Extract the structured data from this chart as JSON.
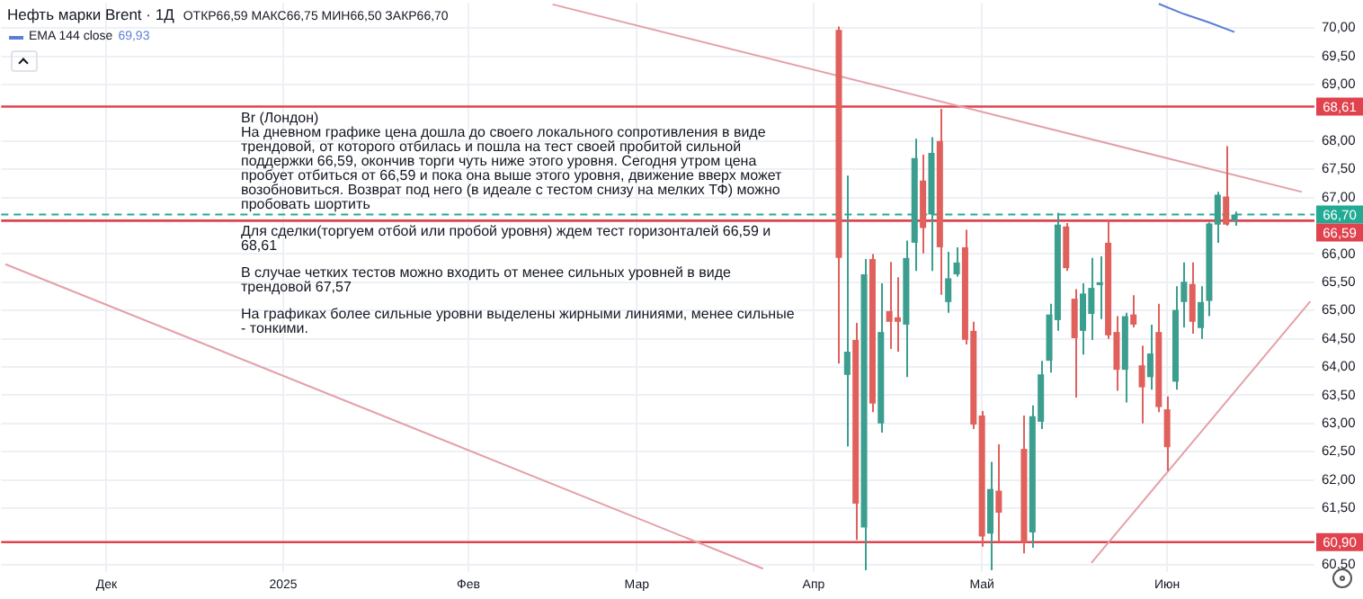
{
  "chart_data": {
    "type": "candlestick",
    "title": "Нефть марки Brent · 1Д",
    "subtitle": "ОТКР66,59 МАКС66,75 МИН66,50 ЗАКР66,70",
    "categories": [
      null,
      null,
      null,
      null,
      null,
      null,
      null,
      null,
      null,
      null,
      null,
      null,
      "Дек",
      null,
      null,
      null,
      null,
      null,
      null,
      null,
      null,
      null,
      null,
      null,
      null,
      null,
      null,
      null,
      null,
      null,
      null,
      null,
      null,
      "2025",
      null,
      null,
      null,
      null,
      null,
      null,
      null,
      null,
      null,
      null,
      null,
      null,
      null,
      null,
      null,
      null,
      null,
      null,
      null,
      null,
      null,
      "Фев",
      null,
      null,
      null,
      null,
      null,
      null,
      null,
      null,
      null,
      null,
      null,
      null,
      null,
      null,
      null,
      null,
      null,
      null,
      null,
      "Мар",
      null,
      null,
      null,
      null,
      null,
      null,
      null,
      null,
      null,
      null,
      null,
      null,
      null,
      null,
      null,
      null,
      null,
      null,
      null,
      null,
      "Апр",
      null,
      null,
      null,
      null,
      null,
      null,
      null,
      null,
      null,
      null,
      null,
      null,
      null,
      null,
      null,
      null,
      null,
      null,
      null,
      "Май",
      null,
      null,
      null,
      null,
      null,
      null,
      null,
      null,
      null,
      null,
      null,
      null,
      null,
      null,
      null,
      null,
      null,
      null,
      null,
      null,
      null,
      "Июн",
      null,
      null,
      null,
      null,
      null,
      null,
      null,
      null,
      null,
      null,
      null,
      null,
      null,
      null,
      null,
      null,
      null
    ],
    "ohlc": [
      null,
      null,
      null,
      null,
      null,
      null,
      null,
      null,
      null,
      null,
      null,
      null,
      null,
      null,
      null,
      null,
      null,
      null,
      null,
      null,
      null,
      null,
      null,
      null,
      null,
      null,
      null,
      null,
      null,
      null,
      null,
      null,
      null,
      null,
      null,
      null,
      null,
      null,
      null,
      null,
      null,
      null,
      null,
      null,
      null,
      null,
      null,
      null,
      null,
      null,
      null,
      null,
      null,
      null,
      null,
      null,
      null,
      null,
      null,
      null,
      null,
      null,
      null,
      null,
      null,
      null,
      null,
      null,
      null,
      null,
      null,
      null,
      null,
      null,
      null,
      null,
      null,
      null,
      null,
      null,
      null,
      null,
      null,
      null,
      null,
      null,
      null,
      null,
      null,
      null,
      null,
      null,
      null,
      null,
      null,
      null,
      null,
      null,
      null,
      [
        69.97,
        70.03,
        64.06,
        65.93
      ],
      [
        63.86,
        67.39,
        62.59,
        64.27
      ],
      [
        64.48,
        64.78,
        60.94,
        61.58
      ],
      [
        61.16,
        65.91,
        60.4,
        65.64
      ],
      [
        65.91,
        66.0,
        63.2,
        63.35
      ],
      [
        63.0,
        65.48,
        62.84,
        64.62
      ],
      [
        64.99,
        65.86,
        64.32,
        64.8
      ],
      [
        64.88,
        65.59,
        64.27,
        64.8
      ],
      [
        64.75,
        66.24,
        63.82,
        65.93
      ],
      [
        66.2,
        68.04,
        65.7,
        67.7
      ],
      [
        67.3,
        67.76,
        66.01,
        66.46
      ],
      [
        66.7,
        68.07,
        65.7,
        67.79
      ],
      [
        68.0,
        68.57,
        65.28,
        66.12
      ],
      [
        65.15,
        66.04,
        64.96,
        65.57
      ],
      [
        65.64,
        66.12,
        65.6,
        65.85
      ],
      [
        66.12,
        66.43,
        64.4,
        64.48
      ],
      [
        64.64,
        64.8,
        62.9,
        62.98
      ],
      [
        63.14,
        63.22,
        60.82,
        61.0
      ],
      [
        61.05,
        62.32,
        60.4,
        61.84
      ],
      [
        61.81,
        62.63,
        60.9,
        61.42
      ],
      null,
      null,
      [
        62.55,
        63.14,
        60.7,
        60.89
      ],
      [
        61.07,
        63.32,
        60.8,
        63.13
      ],
      [
        63.03,
        64.11,
        62.9,
        63.87
      ],
      [
        64.11,
        65.12,
        63.9,
        64.93
      ],
      [
        64.83,
        66.73,
        64.64,
        66.52
      ],
      [
        66.49,
        66.55,
        65.7,
        65.75
      ],
      [
        65.21,
        65.38,
        63.46,
        64.51
      ],
      [
        64.64,
        65.48,
        64.22,
        65.3
      ],
      [
        64.94,
        65.93,
        64.48,
        65.4
      ],
      [
        65.45,
        65.96,
        64.85,
        65.5
      ],
      [
        66.2,
        66.59,
        64.5,
        64.56
      ],
      [
        64.62,
        64.9,
        63.58,
        63.95
      ],
      [
        63.95,
        64.96,
        63.37,
        64.9
      ],
      [
        64.93,
        65.27,
        64.7,
        64.75
      ],
      [
        64.03,
        64.38,
        63.0,
        63.64
      ],
      [
        63.82,
        64.75,
        63.6,
        64.24
      ],
      [
        64.62,
        65.12,
        63.2,
        63.29
      ],
      [
        63.25,
        63.48,
        62.16,
        62.58
      ],
      [
        63.74,
        65.43,
        63.6,
        65.01
      ],
      [
        65.15,
        65.85,
        64.7,
        65.51
      ],
      [
        65.47,
        65.85,
        64.59,
        64.8
      ],
      [
        64.69,
        65.43,
        64.5,
        65.15
      ],
      [
        65.17,
        66.56,
        64.9,
        66.54
      ],
      [
        66.52,
        67.1,
        66.2,
        67.05
      ],
      [
        67.02,
        67.91,
        66.5,
        66.52
      ],
      [
        66.59,
        66.75,
        66.5,
        66.7
      ],
      null,
      null,
      null,
      null,
      null,
      null,
      null,
      null,
      null
    ],
    "series": [
      {
        "type": "line",
        "name": "EMA 144 close",
        "color": "#5b7fd6",
        "values": [
          null,
          null,
          null,
          null,
          null,
          null,
          null,
          null,
          null,
          null,
          null,
          null,
          null,
          null,
          null,
          null,
          null,
          null,
          null,
          null,
          null,
          null,
          null,
          null,
          null,
          null,
          null,
          null,
          null,
          null,
          null,
          null,
          null,
          null,
          null,
          null,
          null,
          null,
          null,
          null,
          null,
          null,
          null,
          null,
          null,
          null,
          null,
          null,
          null,
          null,
          null,
          null,
          null,
          null,
          null,
          null,
          null,
          null,
          null,
          null,
          null,
          null,
          null,
          null,
          null,
          null,
          null,
          null,
          null,
          null,
          null,
          null,
          null,
          null,
          null,
          null,
          null,
          null,
          null,
          null,
          null,
          null,
          null,
          null,
          null,
          null,
          null,
          null,
          null,
          null,
          null,
          null,
          null,
          null,
          null,
          null,
          null,
          null,
          null,
          null,
          null,
          null,
          null,
          null,
          null,
          null,
          null,
          null,
          null,
          null,
          null,
          null,
          null,
          null,
          null,
          null,
          null,
          null,
          null,
          null,
          null,
          null,
          null,
          null,
          null,
          null,
          null,
          null,
          null,
          null,
          null,
          null,
          null,
          null,
          null,
          null,
          null,
          70.43,
          null,
          null,
          70.25,
          null,
          null,
          70.1,
          null,
          null,
          69.93,
          null,
          null,
          null,
          null,
          null,
          null,
          null,
          null,
          null
        ]
      },
      {
        "type": "line",
        "color": "#e3a1a8",
        "values": [
          null,
          null,
          null,
          null,
          null,
          null,
          null,
          null,
          null,
          null,
          null,
          null,
          null,
          null,
          null,
          null,
          null,
          null,
          null,
          null,
          null,
          null,
          null,
          null,
          null,
          null,
          null,
          null,
          null,
          null,
          null,
          null,
          null,
          null,
          null,
          null,
          null,
          null,
          null,
          null,
          null,
          null,
          null,
          null,
          null,
          null,
          null,
          null,
          null,
          null,
          null,
          null,
          null,
          null,
          null,
          null,
          null,
          null,
          null,
          null,
          null,
          null,
          null,
          null,
          null,
          70.42,
          null,
          null,
          null,
          null,
          null,
          null,
          null,
          null,
          null,
          null,
          null,
          null,
          null,
          null,
          null,
          null,
          null,
          null,
          null,
          null,
          null,
          null,
          null,
          null,
          null,
          null,
          null,
          null,
          null,
          null,
          null,
          null,
          null,
          null,
          null,
          null,
          null,
          null,
          null,
          null,
          null,
          null,
          null,
          null,
          null,
          null,
          null,
          null,
          null,
          null,
          null,
          null,
          null,
          null,
          null,
          null,
          null,
          null,
          null,
          null,
          null,
          null,
          null,
          null,
          null,
          null,
          null,
          null,
          null,
          null,
          null,
          null,
          null,
          null,
          null,
          null,
          null,
          null,
          null,
          null,
          null,
          null,
          null,
          null,
          null,
          null,
          null,
          null,
          67.1,
          null
        ]
      },
      {
        "type": "line",
        "color": "#e3a1a8",
        "values": [
          65.82,
          null,
          null,
          null,
          null,
          null,
          null,
          null,
          null,
          null,
          null,
          null,
          null,
          null,
          null,
          null,
          null,
          null,
          null,
          null,
          null,
          null,
          null,
          null,
          null,
          null,
          null,
          null,
          null,
          null,
          null,
          null,
          null,
          null,
          null,
          null,
          null,
          null,
          null,
          null,
          null,
          null,
          null,
          null,
          null,
          null,
          null,
          null,
          null,
          null,
          null,
          null,
          null,
          null,
          null,
          null,
          null,
          null,
          null,
          null,
          null,
          null,
          null,
          null,
          null,
          null,
          null,
          null,
          null,
          null,
          null,
          null,
          null,
          null,
          null,
          null,
          null,
          null,
          null,
          null,
          null,
          null,
          null,
          null,
          null,
          null,
          null,
          null,
          null,
          null,
          60.43,
          null,
          null,
          null,
          null,
          null,
          null,
          null,
          null,
          null,
          null,
          null,
          null,
          null,
          null,
          null,
          null,
          null,
          null,
          null,
          null,
          null,
          null,
          null,
          null,
          null,
          null,
          null,
          null,
          null,
          null,
          null,
          null,
          null,
          null,
          null,
          null,
          null,
          null,
          null,
          null,
          null,
          null,
          null,
          null,
          null,
          null,
          null,
          null,
          null,
          null,
          null,
          null,
          null,
          null,
          null,
          null,
          null,
          null,
          null,
          null,
          null,
          null,
          null,
          null,
          null
        ]
      },
      {
        "type": "line",
        "color": "#e3a1a8",
        "values": [
          null,
          null,
          null,
          null,
          null,
          null,
          null,
          null,
          null,
          null,
          null,
          null,
          null,
          null,
          null,
          null,
          null,
          null,
          null,
          null,
          null,
          null,
          null,
          null,
          null,
          null,
          null,
          null,
          null,
          null,
          null,
          null,
          null,
          null,
          null,
          null,
          null,
          null,
          null,
          null,
          null,
          null,
          null,
          null,
          null,
          null,
          null,
          null,
          null,
          null,
          null,
          null,
          null,
          null,
          null,
          null,
          null,
          null,
          null,
          null,
          null,
          null,
          null,
          null,
          null,
          null,
          null,
          null,
          null,
          null,
          null,
          null,
          null,
          null,
          null,
          null,
          null,
          null,
          null,
          null,
          null,
          null,
          null,
          null,
          null,
          null,
          null,
          null,
          null,
          null,
          null,
          null,
          null,
          null,
          null,
          null,
          null,
          null,
          null,
          null,
          null,
          null,
          null,
          null,
          null,
          null,
          null,
          null,
          null,
          null,
          null,
          null,
          null,
          null,
          null,
          null,
          null,
          null,
          null,
          null,
          null,
          null,
          null,
          null,
          null,
          null,
          null,
          null,
          null,
          60.53,
          null,
          null,
          null,
          null,
          null,
          null,
          null,
          null,
          null,
          null,
          null,
          null,
          null,
          null,
          null,
          null,
          null,
          null,
          null,
          null,
          null,
          null,
          null,
          null,
          null,
          65.16
        ]
      }
    ],
    "ylim": [
      60.37,
      70.45
    ],
    "yticks": [
      {
        "value": 60.5,
        "label": "60,50"
      },
      {
        "value": 61.5,
        "label": "61,50"
      },
      {
        "value": 62,
        "label": "62,00"
      },
      {
        "value": 62.5,
        "label": "62,50"
      },
      {
        "value": 63,
        "label": "63,00"
      },
      {
        "value": 63.5,
        "label": "63,50"
      },
      {
        "value": 64,
        "label": "64,00"
      },
      {
        "value": 64.5,
        "label": "64,50"
      },
      {
        "value": 65,
        "label": "65,00"
      },
      {
        "value": 65.5,
        "label": "65,50"
      },
      {
        "value": 66,
        "label": "66,00"
      },
      {
        "value": 67,
        "label": "67,00"
      },
      {
        "value": 67.5,
        "label": "67,50"
      },
      {
        "value": 68,
        "label": "68,00"
      },
      {
        "value": 69,
        "label": "69,00"
      },
      {
        "value": 69.5,
        "label": "69,50"
      },
      {
        "value": 70,
        "label": "70,00"
      }
    ],
    "ref_lines": [
      {
        "axis": "y",
        "value": 68.61,
        "label": "68,61",
        "color": "#e0434e"
      },
      {
        "axis": "y",
        "value": 66.7,
        "label": "66,70",
        "color": "#22ab94",
        "line_style": "dashed"
      },
      {
        "axis": "y",
        "value": 66.59,
        "label": "66,59",
        "color": "#e0434e"
      },
      {
        "axis": "y",
        "value": 60.9,
        "label": "60,90",
        "color": "#e0434e"
      }
    ],
    "annotations": [
      "69,93",
      "Br (Лондон)",
      "На дневном графике цена дошла до своего локального сопротивления в виде трендовой, от которого отбилась и пошла на тест своей пробитой сильной поддержки 66,59, окончив торги чуть ниже этого уровня. Сегодня утром цена пробует отбиться от 66,59 и пока она выше этого уровня, движение вверх может возобновиться. Возврат под него (в идеале с тестом снизу на мелких ТФ) можно пробовать шортить",
      "Для сделки(торгуем отбой или пробой уровня) ждем тест горизонталей 66,59 и 68,61",
      "В случае четких тестов можно входить от менее сильных уровней в виде трендовой 67,57",
      "На графиках более сильные уровни выделены жирными линиями, менее сильные - тонкими."
    ],
    "grid": true,
    "legend": "top left"
  }
}
